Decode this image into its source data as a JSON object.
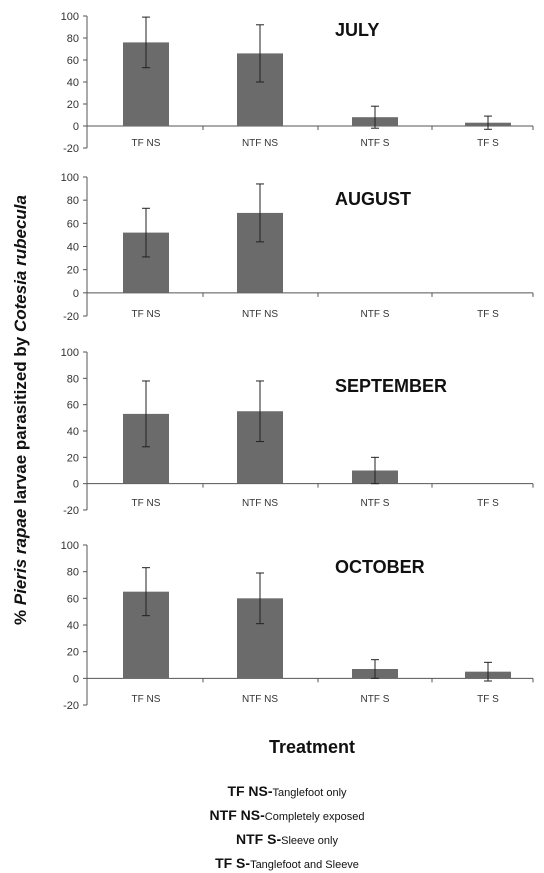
{
  "figure": {
    "ylabel_prefix": "% ",
    "ylabel_italic_1": "Pieris rapae",
    "ylabel_mid": " larvae parasitized by ",
    "ylabel_italic_2": "Cotesia rubecula",
    "xlabel": "Treatment",
    "legend": [
      {
        "code": "TF NS-",
        "desc": "Tanglefoot only"
      },
      {
        "code": "NTF NS-",
        "desc": "Completely exposed"
      },
      {
        "code": "NTF S-",
        "desc": "Sleeve only"
      },
      {
        "code": "TF S-",
        "desc": "Tanglefoot and Sleeve"
      }
    ],
    "bar_color": "#6b6b6b"
  },
  "chart_data": [
    {
      "type": "bar",
      "title": "JULY",
      "categories": [
        "TF NS",
        "NTF NS",
        "NTF S",
        "TF S"
      ],
      "values": [
        76,
        66,
        8,
        3
      ],
      "error": [
        23,
        26,
        10,
        6
      ],
      "ylim": [
        -20,
        100
      ],
      "yticks": [
        -20,
        0,
        20,
        40,
        60,
        80,
        100
      ]
    },
    {
      "type": "bar",
      "title": "AUGUST",
      "categories": [
        "TF NS",
        "NTF NS",
        "NTF S",
        "TF S"
      ],
      "values": [
        52,
        69,
        0,
        0
      ],
      "error": [
        21,
        25,
        0,
        0
      ],
      "ylim": [
        -20,
        100
      ],
      "yticks": [
        -20,
        0,
        20,
        40,
        60,
        80,
        100
      ]
    },
    {
      "type": "bar",
      "title": "SEPTEMBER",
      "categories": [
        "TF NS",
        "NTF NS",
        "NTF S",
        "TF S"
      ],
      "values": [
        53,
        55,
        10,
        0
      ],
      "error": [
        25,
        23,
        10,
        0
      ],
      "ylim": [
        -20,
        100
      ],
      "yticks": [
        -20,
        0,
        20,
        40,
        60,
        80,
        100
      ]
    },
    {
      "type": "bar",
      "title": "OCTOBER",
      "categories": [
        "TF NS",
        "NTF NS",
        "NTF S",
        "TF S"
      ],
      "values": [
        65,
        60,
        7,
        5
      ],
      "error": [
        18,
        19,
        7,
        7
      ],
      "ylim": [
        -20,
        100
      ],
      "yticks": [
        -20,
        0,
        20,
        40,
        60,
        80,
        100
      ]
    }
  ]
}
